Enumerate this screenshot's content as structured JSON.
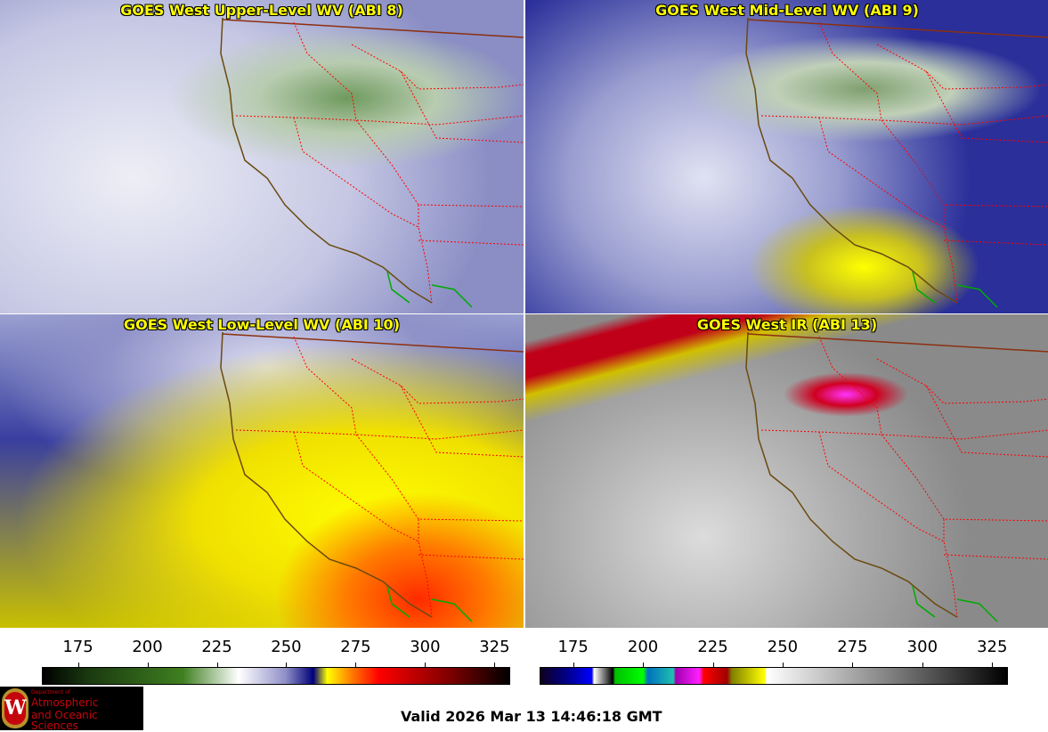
{
  "panels": [
    {
      "title": "GOES West Upper-Level WV (ABI 8)"
    },
    {
      "title": "GOES West Mid-Level WV (ABI 9)"
    },
    {
      "title": "GOES West Low-Level WV (ABI 10)"
    },
    {
      "title": "GOES West IR (ABI 13)"
    }
  ],
  "colorbars": [
    {
      "ticks": [
        "175",
        "200",
        "225",
        "250",
        "275",
        "300",
        "325"
      ],
      "range": [
        162,
        330
      ]
    },
    {
      "ticks": [
        "175",
        "200",
        "225",
        "250",
        "275",
        "300",
        "325"
      ],
      "range": [
        163,
        330
      ]
    }
  ],
  "logo": {
    "dept": "Department of",
    "line1": "Atmospheric",
    "line2": "and Oceanic Sciences",
    "seal_letter": "W"
  },
  "valid": "Valid 2026 Mar 13 14:46:18 GMT",
  "colors": {
    "title": "#ffff00",
    "state_border": "#ff0000",
    "coast": "#6b4a10",
    "mexico_border": "#00aa00"
  }
}
